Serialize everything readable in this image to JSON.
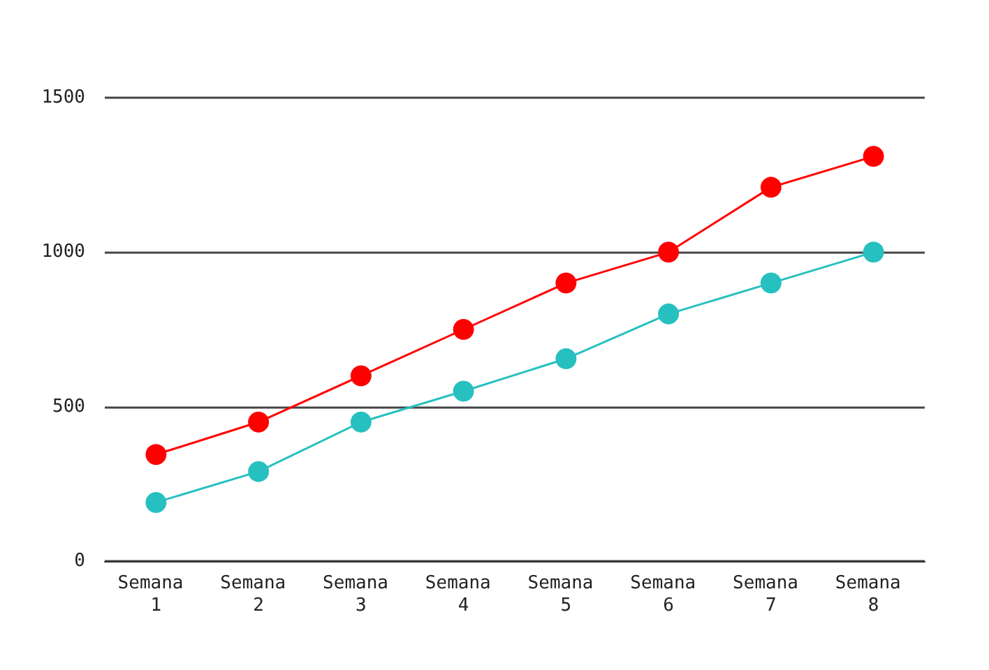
{
  "chart_data": {
    "type": "line",
    "categories": [
      "Semana 1",
      "Semana 2",
      "Semana 3",
      "Semana 4",
      "Semana 5",
      "Semana 6",
      "Semana 7",
      "Semana 8"
    ],
    "series": [
      {
        "color": "#ff0000",
        "values": [
          345,
          450,
          600,
          750,
          900,
          1000,
          1210,
          1310
        ]
      },
      {
        "color": "#26c0c0",
        "values": [
          190,
          290,
          450,
          550,
          655,
          800,
          900,
          1000
        ]
      }
    ],
    "ylim": [
      0,
      1500
    ],
    "yticks": [
      0,
      500,
      1000,
      1500
    ],
    "grid": "y",
    "marker": "circle",
    "line_style": "solid"
  }
}
